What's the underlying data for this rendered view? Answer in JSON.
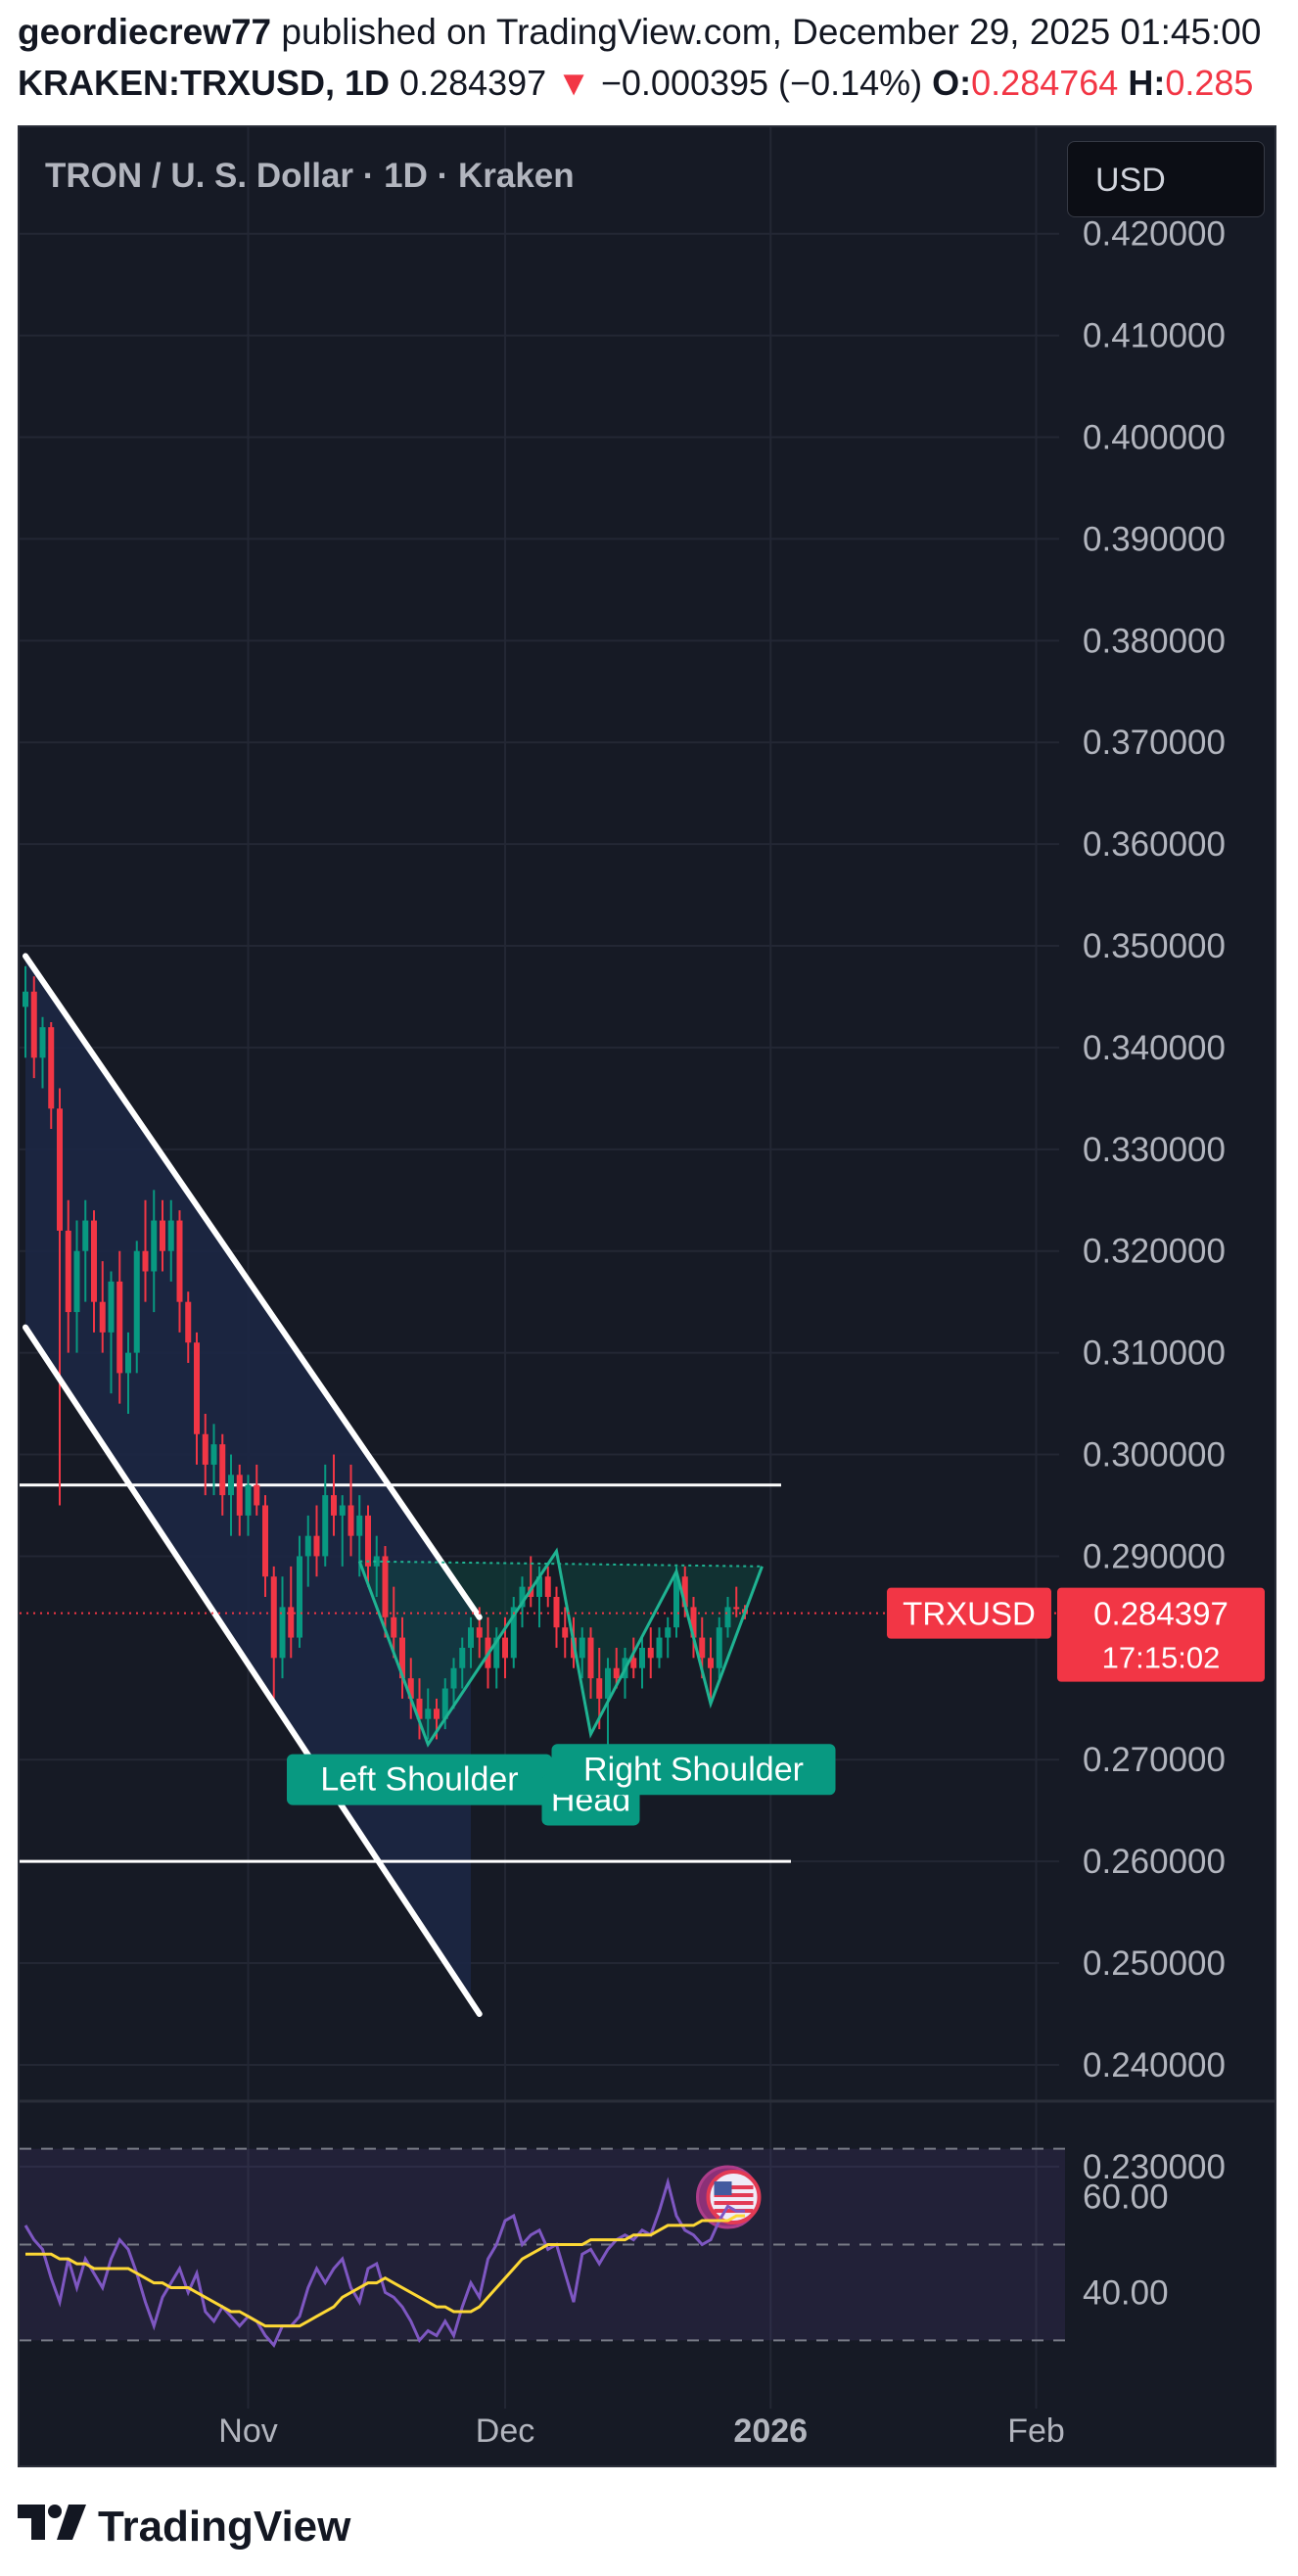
{
  "header": {
    "author": "geordiecrew77",
    "published": " published on TradingView.com, December 29, 2025 01:45:00",
    "symbol": "KRAKEN:TRXUSD, 1D",
    "last": "0.284397",
    "change_arrow": "▼",
    "change": "−0.000395 (−0.14%)",
    "open_label": "O:",
    "open": "0.284764",
    "high_label": "H:",
    "high": "0.285"
  },
  "chart_title": "TRON / U. S. Dollar · 1D · Kraken",
  "currency_button": "USD",
  "footer": {
    "brand": "TradingView"
  },
  "colors": {
    "background": "#161a25",
    "up": "#089981",
    "down": "#f23645",
    "rsi": "#7e57c2",
    "rsi_ma": "#fdd835",
    "channel_fill": "#1c2744"
  },
  "chart_data": [
    {
      "type": "candlestick",
      "title": "TRON / U. S. Dollar · 1D · Kraken",
      "y_axis_position": "right",
      "ylim": [
        0.2245,
        0.4295
      ],
      "y_ticks": [
        "0.420000",
        "0.410000",
        "0.400000",
        "0.390000",
        "0.380000",
        "0.370000",
        "0.360000",
        "0.350000",
        "0.340000",
        "0.330000",
        "0.320000",
        "0.310000",
        "0.300000",
        "0.290000",
        "0.270000",
        "0.260000",
        "0.250000",
        "0.240000",
        "0.230000"
      ],
      "x_ticks": [
        {
          "label": "Nov",
          "date": "2025-11-01",
          "bold": false
        },
        {
          "label": "Dec",
          "date": "2025-12-01",
          "bold": false
        },
        {
          "label": "2026",
          "date": "2026-01-01",
          "bold": true
        },
        {
          "label": "Feb",
          "date": "2026-02-01",
          "bold": false
        }
      ],
      "xlim": [
        "2025-10-06",
        "2026-02-08"
      ],
      "candles": [
        {
          "date": "2025-10-06",
          "o": 0.344,
          "h": 0.348,
          "l": 0.339,
          "c": 0.3455
        },
        {
          "date": "2025-10-07",
          "o": 0.3455,
          "h": 0.347,
          "l": 0.337,
          "c": 0.339
        },
        {
          "date": "2025-10-08",
          "o": 0.339,
          "h": 0.343,
          "l": 0.336,
          "c": 0.342
        },
        {
          "date": "2025-10-09",
          "o": 0.342,
          "h": 0.3425,
          "l": 0.332,
          "c": 0.334
        },
        {
          "date": "2025-10-10",
          "o": 0.334,
          "h": 0.336,
          "l": 0.295,
          "c": 0.322
        },
        {
          "date": "2025-10-11",
          "o": 0.322,
          "h": 0.325,
          "l": 0.31,
          "c": 0.314
        },
        {
          "date": "2025-10-12",
          "o": 0.314,
          "h": 0.323,
          "l": 0.31,
          "c": 0.32
        },
        {
          "date": "2025-10-13",
          "o": 0.32,
          "h": 0.325,
          "l": 0.315,
          "c": 0.323
        },
        {
          "date": "2025-10-14",
          "o": 0.323,
          "h": 0.324,
          "l": 0.312,
          "c": 0.315
        },
        {
          "date": "2025-10-15",
          "o": 0.315,
          "h": 0.319,
          "l": 0.31,
          "c": 0.312
        },
        {
          "date": "2025-10-16",
          "o": 0.312,
          "h": 0.318,
          "l": 0.306,
          "c": 0.317
        },
        {
          "date": "2025-10-17",
          "o": 0.317,
          "h": 0.32,
          "l": 0.305,
          "c": 0.308
        },
        {
          "date": "2025-10-18",
          "o": 0.308,
          "h": 0.312,
          "l": 0.304,
          "c": 0.31
        },
        {
          "date": "2025-10-19",
          "o": 0.31,
          "h": 0.321,
          "l": 0.308,
          "c": 0.32
        },
        {
          "date": "2025-10-20",
          "o": 0.32,
          "h": 0.325,
          "l": 0.315,
          "c": 0.318
        },
        {
          "date": "2025-10-21",
          "o": 0.318,
          "h": 0.326,
          "l": 0.314,
          "c": 0.323
        },
        {
          "date": "2025-10-22",
          "o": 0.323,
          "h": 0.325,
          "l": 0.318,
          "c": 0.32
        },
        {
          "date": "2025-10-23",
          "o": 0.32,
          "h": 0.325,
          "l": 0.317,
          "c": 0.323
        },
        {
          "date": "2025-10-24",
          "o": 0.323,
          "h": 0.324,
          "l": 0.312,
          "c": 0.315
        },
        {
          "date": "2025-10-25",
          "o": 0.315,
          "h": 0.316,
          "l": 0.309,
          "c": 0.311
        },
        {
          "date": "2025-10-26",
          "o": 0.311,
          "h": 0.312,
          "l": 0.299,
          "c": 0.302
        },
        {
          "date": "2025-10-27",
          "o": 0.302,
          "h": 0.304,
          "l": 0.296,
          "c": 0.299
        },
        {
          "date": "2025-10-28",
          "o": 0.299,
          "h": 0.303,
          "l": 0.296,
          "c": 0.301
        },
        {
          "date": "2025-10-29",
          "o": 0.301,
          "h": 0.302,
          "l": 0.294,
          "c": 0.296
        },
        {
          "date": "2025-10-30",
          "o": 0.296,
          "h": 0.3,
          "l": 0.292,
          "c": 0.298
        },
        {
          "date": "2025-10-31",
          "o": 0.298,
          "h": 0.299,
          "l": 0.292,
          "c": 0.294
        },
        {
          "date": "2025-11-01",
          "o": 0.294,
          "h": 0.298,
          "l": 0.292,
          "c": 0.297
        },
        {
          "date": "2025-11-02",
          "o": 0.297,
          "h": 0.299,
          "l": 0.294,
          "c": 0.295
        },
        {
          "date": "2025-11-03",
          "o": 0.295,
          "h": 0.296,
          "l": 0.286,
          "c": 0.288
        },
        {
          "date": "2025-11-04",
          "o": 0.288,
          "h": 0.289,
          "l": 0.276,
          "c": 0.28
        },
        {
          "date": "2025-11-05",
          "o": 0.28,
          "h": 0.288,
          "l": 0.278,
          "c": 0.285
        },
        {
          "date": "2025-11-06",
          "o": 0.285,
          "h": 0.289,
          "l": 0.28,
          "c": 0.282
        },
        {
          "date": "2025-11-07",
          "o": 0.282,
          "h": 0.292,
          "l": 0.281,
          "c": 0.29
        },
        {
          "date": "2025-11-08",
          "o": 0.29,
          "h": 0.294,
          "l": 0.287,
          "c": 0.292
        },
        {
          "date": "2025-11-09",
          "o": 0.292,
          "h": 0.295,
          "l": 0.288,
          "c": 0.29
        },
        {
          "date": "2025-11-10",
          "o": 0.29,
          "h": 0.299,
          "l": 0.289,
          "c": 0.296
        },
        {
          "date": "2025-11-11",
          "o": 0.296,
          "h": 0.3,
          "l": 0.292,
          "c": 0.294
        },
        {
          "date": "2025-11-12",
          "o": 0.294,
          "h": 0.296,
          "l": 0.289,
          "c": 0.295
        },
        {
          "date": "2025-11-13",
          "o": 0.295,
          "h": 0.299,
          "l": 0.29,
          "c": 0.292
        },
        {
          "date": "2025-11-14",
          "o": 0.292,
          "h": 0.296,
          "l": 0.288,
          "c": 0.294
        },
        {
          "date": "2025-11-15",
          "o": 0.294,
          "h": 0.295,
          "l": 0.287,
          "c": 0.289
        },
        {
          "date": "2025-11-16",
          "o": 0.289,
          "h": 0.292,
          "l": 0.286,
          "c": 0.29
        },
        {
          "date": "2025-11-17",
          "o": 0.29,
          "h": 0.291,
          "l": 0.282,
          "c": 0.284
        },
        {
          "date": "2025-11-18",
          "o": 0.284,
          "h": 0.287,
          "l": 0.28,
          "c": 0.282
        },
        {
          "date": "2025-11-19",
          "o": 0.282,
          "h": 0.284,
          "l": 0.276,
          "c": 0.278
        },
        {
          "date": "2025-11-20",
          "o": 0.278,
          "h": 0.28,
          "l": 0.274,
          "c": 0.276
        },
        {
          "date": "2025-11-21",
          "o": 0.276,
          "h": 0.278,
          "l": 0.272,
          "c": 0.274
        },
        {
          "date": "2025-11-22",
          "o": 0.274,
          "h": 0.277,
          "l": 0.272,
          "c": 0.275
        },
        {
          "date": "2025-11-23",
          "o": 0.275,
          "h": 0.276,
          "l": 0.272,
          "c": 0.274
        },
        {
          "date": "2025-11-24",
          "o": 0.274,
          "h": 0.278,
          "l": 0.273,
          "c": 0.277
        },
        {
          "date": "2025-11-25",
          "o": 0.277,
          "h": 0.28,
          "l": 0.275,
          "c": 0.279
        },
        {
          "date": "2025-11-26",
          "o": 0.279,
          "h": 0.282,
          "l": 0.277,
          "c": 0.281
        },
        {
          "date": "2025-11-27",
          "o": 0.281,
          "h": 0.284,
          "l": 0.279,
          "c": 0.283
        },
        {
          "date": "2025-11-28",
          "o": 0.283,
          "h": 0.285,
          "l": 0.28,
          "c": 0.282
        },
        {
          "date": "2025-11-29",
          "o": 0.282,
          "h": 0.284,
          "l": 0.277,
          "c": 0.279
        },
        {
          "date": "2025-11-30",
          "o": 0.279,
          "h": 0.283,
          "l": 0.277,
          "c": 0.282
        },
        {
          "date": "2025-12-01",
          "o": 0.282,
          "h": 0.284,
          "l": 0.278,
          "c": 0.28
        },
        {
          "date": "2025-12-02",
          "o": 0.28,
          "h": 0.286,
          "l": 0.279,
          "c": 0.285
        },
        {
          "date": "2025-12-03",
          "o": 0.285,
          "h": 0.288,
          "l": 0.283,
          "c": 0.287
        },
        {
          "date": "2025-12-04",
          "o": 0.287,
          "h": 0.29,
          "l": 0.285,
          "c": 0.286
        },
        {
          "date": "2025-12-05",
          "o": 0.286,
          "h": 0.289,
          "l": 0.283,
          "c": 0.288
        },
        {
          "date": "2025-12-06",
          "o": 0.288,
          "h": 0.289,
          "l": 0.285,
          "c": 0.286
        },
        {
          "date": "2025-12-07",
          "o": 0.286,
          "h": 0.287,
          "l": 0.281,
          "c": 0.283
        },
        {
          "date": "2025-12-08",
          "o": 0.283,
          "h": 0.285,
          "l": 0.28,
          "c": 0.282
        },
        {
          "date": "2025-12-09",
          "o": 0.282,
          "h": 0.284,
          "l": 0.279,
          "c": 0.28
        },
        {
          "date": "2025-12-10",
          "o": 0.28,
          "h": 0.283,
          "l": 0.278,
          "c": 0.282
        },
        {
          "date": "2025-12-11",
          "o": 0.282,
          "h": 0.283,
          "l": 0.276,
          "c": 0.278
        },
        {
          "date": "2025-12-12",
          "o": 0.278,
          "h": 0.281,
          "l": 0.273,
          "c": 0.276
        },
        {
          "date": "2025-12-13",
          "o": 0.276,
          "h": 0.28,
          "l": 0.271,
          "c": 0.279
        },
        {
          "date": "2025-12-14",
          "o": 0.279,
          "h": 0.281,
          "l": 0.277,
          "c": 0.278
        },
        {
          "date": "2025-12-15",
          "o": 0.278,
          "h": 0.281,
          "l": 0.276,
          "c": 0.28
        },
        {
          "date": "2025-12-16",
          "o": 0.28,
          "h": 0.282,
          "l": 0.278,
          "c": 0.279
        },
        {
          "date": "2025-12-17",
          "o": 0.279,
          "h": 0.282,
          "l": 0.277,
          "c": 0.281
        },
        {
          "date": "2025-12-18",
          "o": 0.281,
          "h": 0.283,
          "l": 0.278,
          "c": 0.28
        },
        {
          "date": "2025-12-19",
          "o": 0.28,
          "h": 0.283,
          "l": 0.279,
          "c": 0.282
        },
        {
          "date": "2025-12-20",
          "o": 0.282,
          "h": 0.284,
          "l": 0.28,
          "c": 0.283
        },
        {
          "date": "2025-12-21",
          "o": 0.283,
          "h": 0.289,
          "l": 0.282,
          "c": 0.288
        },
        {
          "date": "2025-12-22",
          "o": 0.288,
          "h": 0.289,
          "l": 0.284,
          "c": 0.285
        },
        {
          "date": "2025-12-23",
          "o": 0.285,
          "h": 0.286,
          "l": 0.28,
          "c": 0.282
        },
        {
          "date": "2025-12-24",
          "o": 0.282,
          "h": 0.284,
          "l": 0.278,
          "c": 0.28
        },
        {
          "date": "2025-12-25",
          "o": 0.28,
          "h": 0.282,
          "l": 0.276,
          "c": 0.279
        },
        {
          "date": "2025-12-26",
          "o": 0.279,
          "h": 0.284,
          "l": 0.278,
          "c": 0.283
        },
        {
          "date": "2025-12-27",
          "o": 0.283,
          "h": 0.286,
          "l": 0.282,
          "c": 0.285
        },
        {
          "date": "2025-12-28",
          "o": 0.285,
          "h": 0.287,
          "l": 0.284,
          "c": 0.2848
        },
        {
          "date": "2025-12-29",
          "o": 0.2848,
          "h": 0.2852,
          "l": 0.2838,
          "c": 0.2844
        }
      ],
      "price_line": {
        "value": 0.284397,
        "symbol_label": "TRXUSD",
        "price_label": "0.284397",
        "countdown": "17:15:02"
      },
      "horizontal_lines": [
        0.297,
        0.26
      ],
      "channel": {
        "upper": [
          [
            "2025-10-06",
            0.349
          ],
          [
            "2025-11-28",
            0.284
          ]
        ],
        "lower": [
          [
            "2025-10-06",
            0.3125
          ],
          [
            "2025-11-28",
            0.245
          ]
        ],
        "box_end_date": "2025-11-27"
      },
      "pattern": {
        "points": [
          [
            "2025-11-14",
            0.2895
          ],
          [
            "2025-11-22",
            0.2715
          ],
          [
            "2025-12-07",
            0.2905
          ],
          [
            "2025-12-11",
            0.2725
          ],
          [
            "2025-12-21",
            0.2885
          ],
          [
            "2025-12-25",
            0.2755
          ],
          [
            "2025-12-31",
            0.289
          ]
        ],
        "neckline": [
          [
            "2025-11-14",
            0.2895
          ],
          [
            "2025-12-31",
            0.289
          ]
        ]
      },
      "annotations": [
        {
          "text": "Left Shoulder",
          "date": "2025-11-21",
          "price": 0.2715
        },
        {
          "text": "Head",
          "date": "2025-12-11",
          "price": 0.2695
        },
        {
          "text": "Right Shoulder",
          "date": "2025-12-23",
          "price": 0.2725
        }
      ],
      "event_marker": {
        "date": "2025-12-27",
        "price": 0.227
      }
    },
    {
      "type": "line",
      "indicator": "RSI",
      "ylim": [
        27,
        73
      ],
      "y_ticks": [
        "60.00",
        "40.00"
      ],
      "band": [
        30,
        70
      ],
      "midline": 50,
      "series": [
        {
          "values": [
            54,
            51,
            49,
            43,
            38,
            47,
            41,
            47,
            44,
            41,
            47,
            51,
            49,
            44,
            38,
            33,
            39,
            42,
            45,
            40,
            44,
            36,
            34,
            37,
            35,
            33,
            35,
            34,
            31,
            29,
            33,
            33,
            35,
            41,
            45,
            42,
            45,
            47,
            41,
            38,
            45,
            46,
            40,
            39,
            37,
            34,
            30,
            32,
            31,
            34,
            31,
            37,
            42,
            39,
            47,
            50,
            55,
            56,
            50,
            52,
            53,
            49,
            50,
            44,
            38,
            48,
            49,
            46,
            49,
            51,
            52,
            51,
            53,
            52,
            57,
            63,
            56,
            53,
            52,
            50,
            51,
            55,
            58,
            57,
            57
          ]
        },
        {
          "values": [
            48,
            48,
            48,
            48,
            47,
            47,
            46,
            46,
            45,
            45,
            45,
            45,
            45,
            44,
            43,
            42,
            42,
            41,
            41,
            41,
            40,
            39,
            38,
            37,
            36,
            36,
            35,
            34,
            33,
            33,
            33,
            33,
            33,
            34,
            35,
            36,
            37,
            39,
            40,
            41,
            42,
            42,
            43,
            42,
            41,
            40,
            39,
            38,
            37,
            37,
            36,
            36,
            36,
            37,
            39,
            41,
            43,
            45,
            47,
            48,
            49,
            50,
            50,
            50,
            50,
            50,
            51,
            51,
            51,
            51,
            51,
            52,
            52,
            52,
            53,
            54,
            54,
            54,
            54,
            55,
            55,
            55,
            55,
            56,
            56
          ]
        }
      ]
    }
  ]
}
